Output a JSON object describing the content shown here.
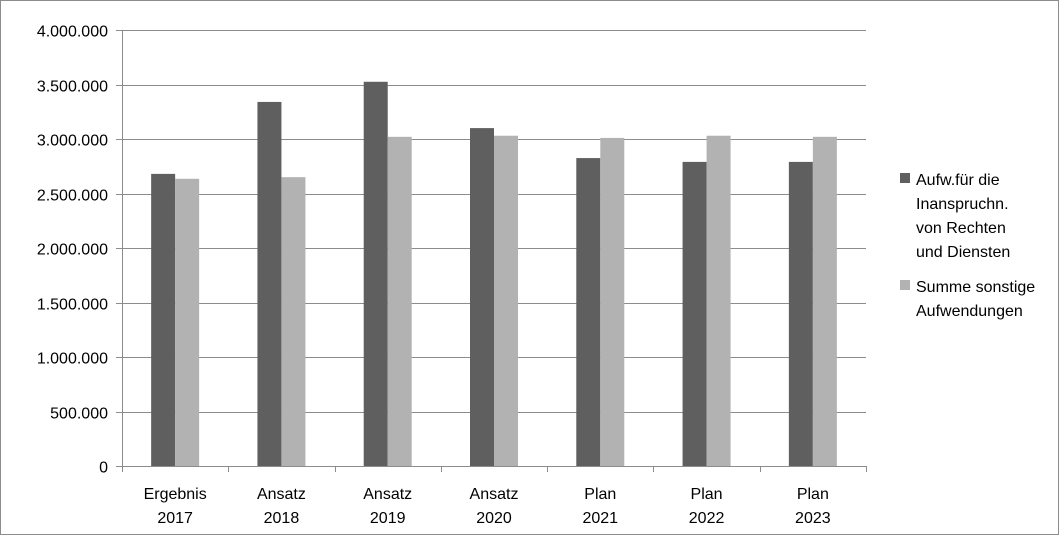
{
  "chart_data": {
    "type": "bar",
    "title": "",
    "xlabel": "",
    "ylabel": "",
    "categories": [
      [
        "Ergebnis",
        "2017"
      ],
      [
        "Ansatz",
        "2018"
      ],
      [
        "Ansatz",
        "2019"
      ],
      [
        "Ansatz",
        "2020"
      ],
      [
        "Plan",
        "2021"
      ],
      [
        "Plan",
        "2022"
      ],
      [
        "Plan",
        "2023"
      ]
    ],
    "series": [
      {
        "name": "Aufw.für die Inanspruchn. von Rechten und Diensten",
        "legend_lines": [
          "Aufw.für die",
          "Inanspruchn.",
          "von Rechten",
          "und Diensten"
        ],
        "color": "#5f5f5f",
        "values": [
          2680000,
          3340000,
          3525000,
          3100000,
          2825000,
          2790000,
          2790000
        ]
      },
      {
        "name": "Summe sonstige Aufwendungen",
        "legend_lines": [
          "Summe sonstige",
          "Aufwendungen"
        ],
        "color": "#b2b2b2",
        "values": [
          2635000,
          2650000,
          3020000,
          3030000,
          3010000,
          3030000,
          3020000
        ]
      }
    ],
    "ylim": [
      0,
      4000000
    ],
    "ytick_values": [
      0,
      500000,
      1000000,
      1500000,
      2000000,
      2500000,
      3000000,
      3500000,
      4000000
    ],
    "ytick_labels": [
      "0",
      "500.000",
      "1.000.000",
      "1.500.000",
      "2.000.000",
      "2.500.000",
      "3.000.000",
      "3.500.000",
      "4.000.000"
    ],
    "grid": true,
    "legend_position": "right"
  },
  "colors": {
    "grid": "#8c8c8c",
    "axis": "#8c8c8c",
    "border": "#8c8c8c"
  }
}
